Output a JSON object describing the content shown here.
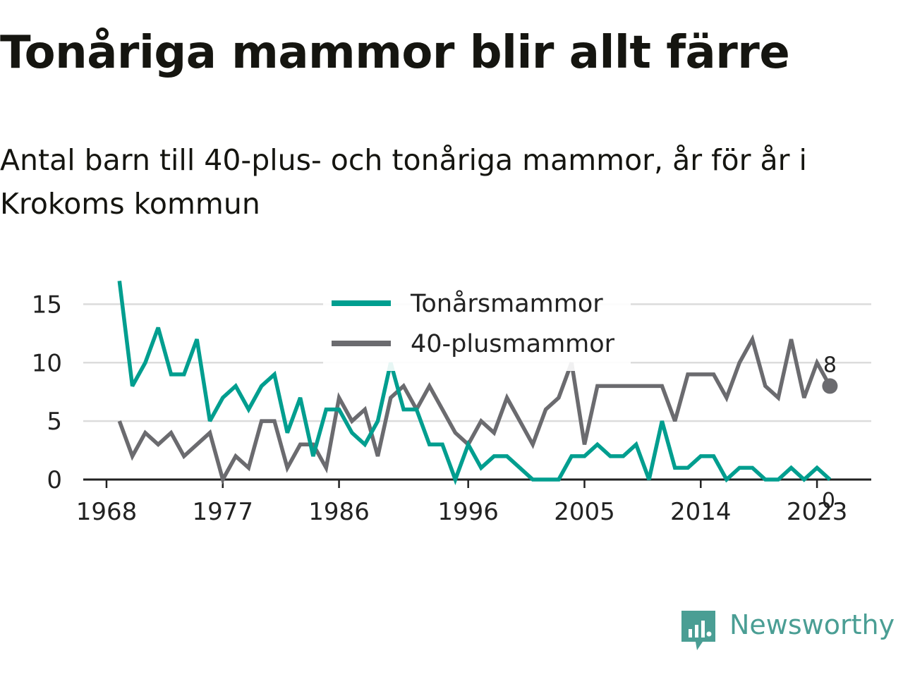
{
  "title": "Tonåriga mammor blir allt färre",
  "subtitle": "Antal barn till 40-plus- och tonåriga mammor, år för år i Krokoms kommun",
  "logo": {
    "text": "Newsworthy",
    "color": "#4a9e94",
    "icon": "newsworthy-logo-icon"
  },
  "colors": {
    "teen": "#009e8f",
    "forty": "#6b6b6f",
    "grid": "#dcdcdc",
    "axis": "#222222"
  },
  "chart_data": {
    "type": "line",
    "x_ticks": [
      1968,
      1977,
      1986,
      1996,
      2005,
      2014,
      2023
    ],
    "y_ticks": [
      0,
      5,
      10,
      15
    ],
    "ylim": [
      0,
      17.5
    ],
    "xlim": [
      1966.2,
      2027.2
    ],
    "grid": true,
    "legend_position": "top-center",
    "x": [
      1969,
      1970,
      1971,
      1972,
      1973,
      1974,
      1975,
      1976,
      1977,
      1978,
      1979,
      1980,
      1981,
      1982,
      1983,
      1984,
      1985,
      1986,
      1987,
      1988,
      1989,
      1990,
      1991,
      1992,
      1993,
      1994,
      1995,
      1996,
      1997,
      1998,
      1999,
      2000,
      2001,
      2002,
      2003,
      2004,
      2005,
      2006,
      2007,
      2008,
      2009,
      2010,
      2011,
      2012,
      2013,
      2014,
      2015,
      2016,
      2017,
      2018,
      2019,
      2020,
      2021,
      2022,
      2023,
      2024
    ],
    "series": [
      {
        "name": "Tonårsmammor",
        "color": "#009e8f",
        "values": [
          17,
          8,
          10,
          13,
          9,
          9,
          12,
          5,
          7,
          8,
          6,
          8,
          9,
          4,
          7,
          2,
          6,
          6,
          4,
          3,
          5,
          10,
          6,
          6,
          3,
          3,
          0,
          3,
          1,
          2,
          2,
          1,
          0,
          0,
          0,
          2,
          2,
          3,
          2,
          2,
          3,
          0,
          5,
          1,
          1,
          2,
          2,
          0,
          1,
          1,
          0,
          0,
          1,
          0,
          1,
          0
        ],
        "end_label": "0"
      },
      {
        "name": "40-plusmammor",
        "color": "#6b6b6f",
        "values": [
          5,
          2,
          4,
          3,
          4,
          2,
          3,
          4,
          0,
          2,
          1,
          5,
          5,
          1,
          3,
          3,
          1,
          7,
          5,
          6,
          2,
          7,
          8,
          6,
          8,
          6,
          4,
          3,
          5,
          4,
          7,
          5,
          3,
          6,
          7,
          10,
          3,
          8,
          8,
          8,
          8,
          8,
          8,
          5,
          9,
          9,
          9,
          7,
          10,
          12,
          8,
          7,
          12,
          7,
          10,
          8
        ],
        "end_label": "8"
      }
    ]
  }
}
